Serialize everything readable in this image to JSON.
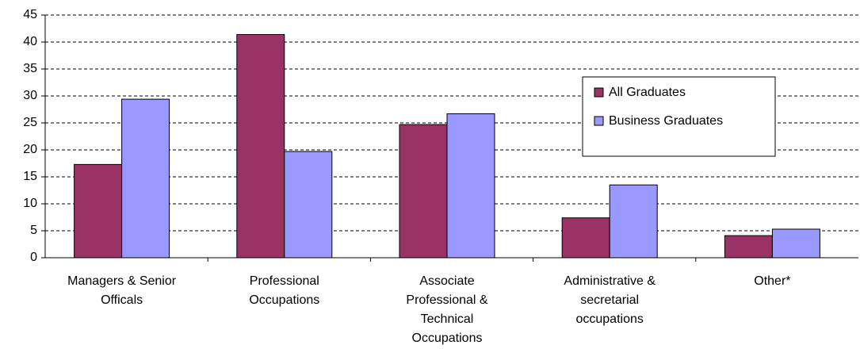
{
  "chart_data": {
    "type": "bar",
    "categories": [
      "Managers & Senior Officals",
      "Professional Occupations",
      "Associate Professional & Technical Occupations",
      "Administrative & secretarial occupations",
      "Other*"
    ],
    "series": [
      {
        "name": "All Graduates",
        "color": "#993366",
        "values": [
          17.3,
          41.4,
          24.7,
          7.4,
          4.1
        ]
      },
      {
        "name": "Business Graduates",
        "color": "#9999ff",
        "values": [
          29.4,
          19.7,
          26.7,
          13.5,
          5.3
        ]
      }
    ],
    "ylim": [
      0,
      45
    ],
    "yticks": [
      0,
      5,
      10,
      15,
      20,
      25,
      30,
      35,
      40,
      45
    ],
    "grid": true,
    "legend": "upper right"
  }
}
